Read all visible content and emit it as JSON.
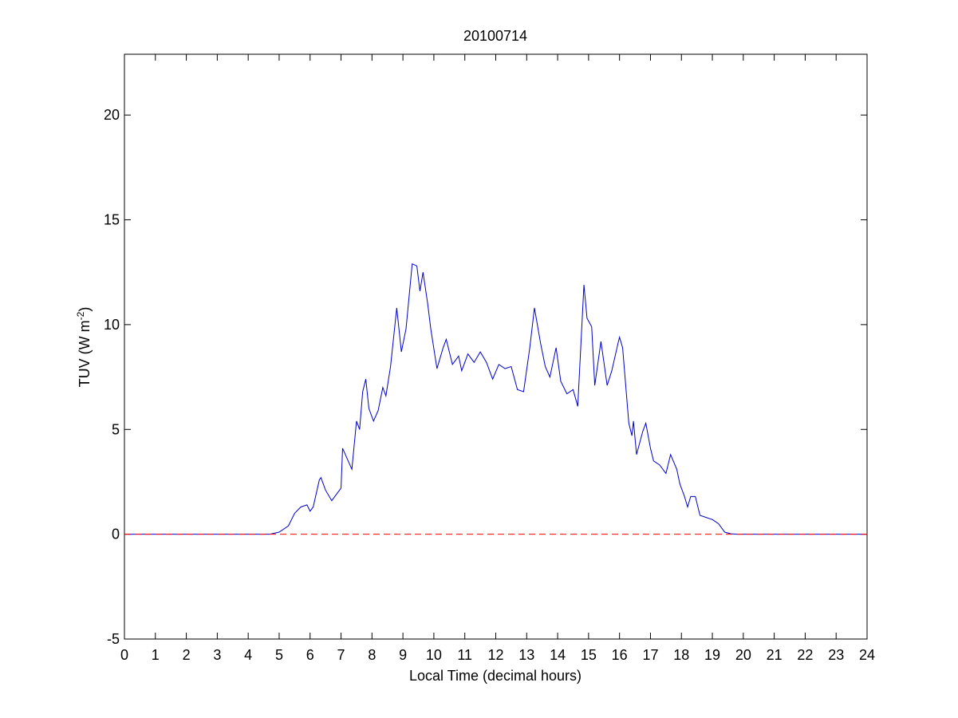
{
  "chart_data": {
    "type": "line",
    "title": "20100714",
    "xlabel": "Local Time (decimal hours)",
    "ylabel": {
      "text": "TUV (W m",
      "superscript": "-2",
      "suffix": ")"
    },
    "xlim": [
      0,
      24
    ],
    "xticks": [
      0,
      1,
      2,
      3,
      4,
      5,
      6,
      7,
      8,
      9,
      10,
      11,
      12,
      13,
      14,
      15,
      16,
      17,
      18,
      19,
      20,
      21,
      22,
      23,
      24
    ],
    "ylim": [
      -5,
      22.9
    ],
    "yticks": [
      -5,
      0,
      5,
      10,
      15,
      20
    ],
    "grid": false,
    "reference_line": {
      "y": 0,
      "color": "#ff0000",
      "style": "dashed"
    },
    "series": [
      {
        "color": "#0000cc",
        "x": [
          0,
          4.7,
          5.0,
          5.3,
          5.5,
          5.7,
          5.9,
          6.0,
          6.1,
          6.3,
          6.35,
          6.5,
          6.7,
          6.9,
          7.0,
          7.05,
          7.2,
          7.35,
          7.5,
          7.6,
          7.7,
          7.8,
          7.9,
          8.05,
          8.2,
          8.35,
          8.45,
          8.6,
          8.8,
          8.95,
          9.1,
          9.3,
          9.45,
          9.55,
          9.65,
          9.8,
          9.9,
          10.1,
          10.3,
          10.4,
          10.6,
          10.8,
          10.9,
          11.1,
          11.3,
          11.5,
          11.7,
          11.9,
          12.1,
          12.3,
          12.5,
          12.7,
          12.9,
          13.1,
          13.25,
          13.45,
          13.6,
          13.75,
          13.95,
          14.1,
          14.3,
          14.5,
          14.65,
          14.85,
          14.95,
          15.1,
          15.2,
          15.4,
          15.6,
          15.75,
          15.95,
          16.0,
          16.1,
          16.3,
          16.4,
          16.45,
          16.55,
          16.75,
          16.85,
          17.0,
          17.1,
          17.3,
          17.5,
          17.65,
          17.85,
          17.95,
          18.1,
          18.2,
          18.3,
          18.45,
          18.6,
          18.8,
          19.0,
          19.2,
          19.4,
          19.6,
          19.8,
          24
        ],
        "values": [
          0,
          0,
          0.1,
          0.4,
          1.0,
          1.3,
          1.4,
          1.1,
          1.3,
          2.6,
          2.7,
          2.1,
          1.6,
          2.0,
          2.2,
          4.1,
          3.6,
          3.1,
          5.4,
          5.0,
          6.8,
          7.4,
          6.0,
          5.4,
          5.9,
          7.0,
          6.6,
          8.0,
          10.8,
          8.7,
          9.8,
          12.9,
          12.8,
          11.6,
          12.5,
          11.0,
          9.8,
          7.9,
          8.9,
          9.3,
          8.1,
          8.5,
          7.8,
          8.6,
          8.2,
          8.7,
          8.2,
          7.4,
          8.1,
          7.9,
          8.0,
          6.9,
          6.8,
          8.9,
          10.8,
          9.1,
          8.0,
          7.5,
          8.9,
          7.3,
          6.7,
          6.9,
          6.1,
          11.9,
          10.3,
          9.9,
          7.1,
          9.2,
          7.1,
          7.8,
          9.1,
          9.4,
          8.9,
          5.3,
          4.7,
          5.4,
          3.8,
          4.9,
          5.3,
          4.1,
          3.5,
          3.3,
          2.9,
          3.8,
          3.1,
          2.4,
          1.8,
          1.3,
          1.8,
          1.8,
          0.9,
          0.8,
          0.7,
          0.5,
          0.1,
          0.02,
          0,
          0
        ]
      }
    ]
  }
}
